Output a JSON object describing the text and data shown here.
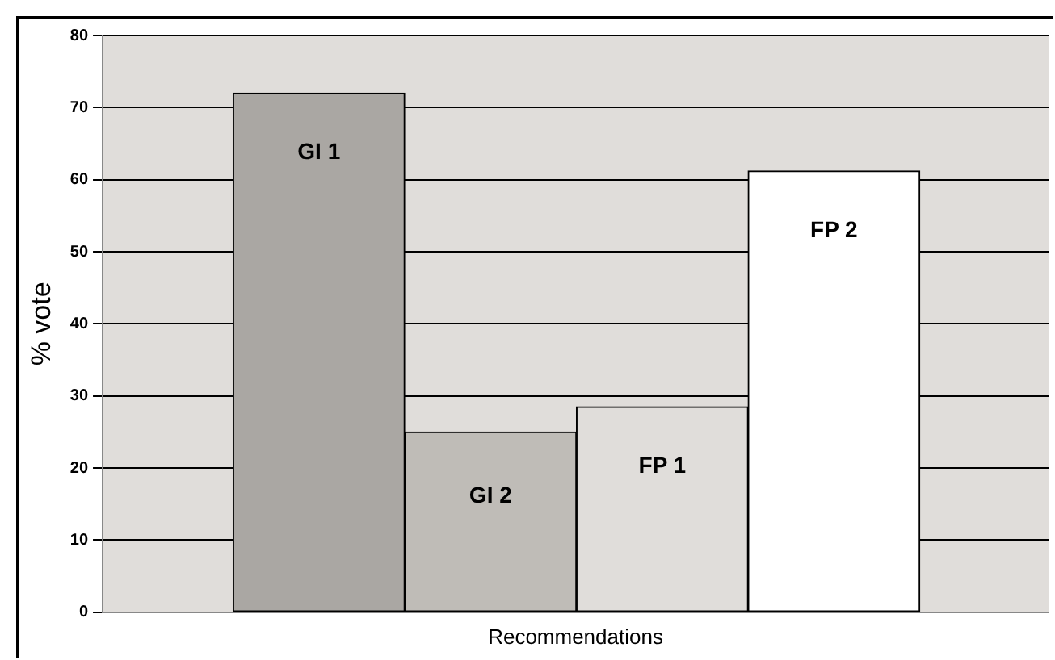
{
  "chart_data": {
    "type": "bar",
    "categories": [
      "GI 1",
      "GI 2",
      "FP 1",
      "FP 2"
    ],
    "values": [
      72,
      25,
      28.5,
      61.2
    ],
    "colors": [
      "#aaa7a3",
      "#bfbcb7",
      "#e0ddda",
      "#ffffff"
    ],
    "xlabel": "Recommendations",
    "ylabel": "% vote",
    "ylim": [
      0,
      80
    ],
    "yticks": [
      0,
      10,
      20,
      30,
      40,
      50,
      60,
      70,
      80
    ],
    "grid": "y",
    "legend": false
  }
}
